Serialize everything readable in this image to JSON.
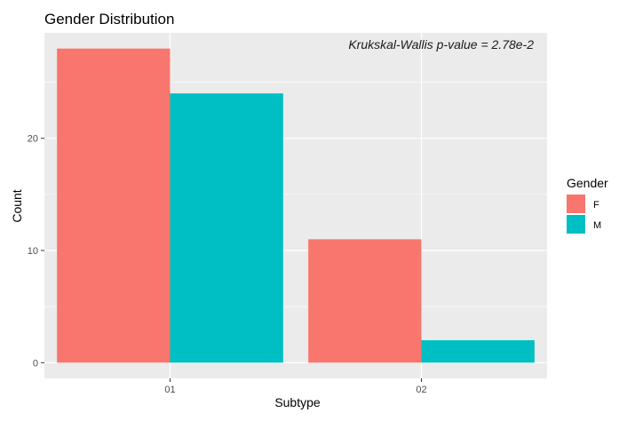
{
  "chart_data": {
    "type": "bar",
    "title": "Gender Distribution",
    "annotation": "Krukskal-Wallis p-value = 2.78e-2",
    "xlabel": "Subtype",
    "ylabel": "Count",
    "categories": [
      "01",
      "02"
    ],
    "series": [
      {
        "name": "F",
        "values": [
          28,
          11
        ],
        "color": "#F8766D"
      },
      {
        "name": "M",
        "values": [
          24,
          2
        ],
        "color": "#00BFC4"
      }
    ],
    "yticks": [
      0,
      10,
      20
    ],
    "ylim": [
      -1.4,
      29.4
    ],
    "grid": true,
    "legend_title": "Gender",
    "legend_position": "right",
    "panel_background": "#EBEBEB",
    "grid_color": "#FFFFFF"
  }
}
